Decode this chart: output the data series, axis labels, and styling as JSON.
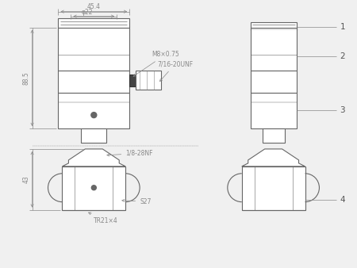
{
  "bg_color": "#f0f0f0",
  "line_color": "#666666",
  "dim_color": "#888888",
  "dark_color": "#333333",
  "annotations": {
    "dim_top_width": "45.4",
    "dim_inner_width": "φ22",
    "dim_height_left": "88.5",
    "dim_bottom_height": "43",
    "label_m8": "M8×0.75",
    "label_unf": "7/16-20UNF",
    "label_nf": "1/8-28NF",
    "label_s27": "S27",
    "label_tr21": "TR21×4",
    "part1": "1",
    "part2": "2",
    "part3": "3",
    "part4": "4"
  }
}
